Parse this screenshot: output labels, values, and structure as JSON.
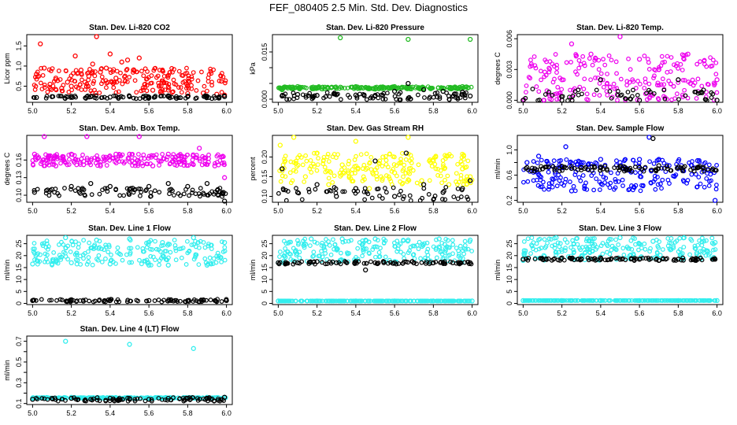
{
  "figure": {
    "title": "FEF_080405  2.5 Min. Std. Dev. Diagnostics"
  },
  "colors": {
    "black": "#000000",
    "red": "#ff0000",
    "green": "#22bb22",
    "magenta": "#ee00ee",
    "yellow": "#ffff00",
    "blue": "#0000ff",
    "cyan": "#33eeee"
  },
  "chart_data": [
    {
      "type": "scatter",
      "title": "Stan. Dev. Li-820 CO2",
      "xlabel": "",
      "ylabel": "Licor ppm",
      "xlim": [
        4.97,
        6.03
      ],
      "ylim": [
        0.1,
        1.78
      ],
      "xticks": [
        5.0,
        5.2,
        5.4,
        5.6,
        5.8,
        6.0
      ],
      "yticks": [
        0.5,
        1.0,
        1.5
      ],
      "ytick_labels": [
        "0.5",
        "1.0",
        "1.5"
      ],
      "grid": false,
      "series": [
        {
          "color_key": "red",
          "x": [
            5.02,
            5.04,
            5.06,
            5.09,
            5.12,
            5.15,
            5.18,
            5.2,
            5.22,
            5.25,
            5.27,
            5.29,
            5.31,
            5.33,
            5.35,
            5.38,
            5.4,
            5.43,
            5.46,
            5.49,
            5.52,
            5.55,
            5.58,
            5.62,
            5.66,
            5.72,
            5.8,
            5.88,
            5.95,
            5.99
          ],
          "y": [
            0.8,
            1.55,
            0.95,
            0.55,
            0.7,
            0.45,
            0.6,
            0.5,
            1.25,
            0.9,
            0.6,
            0.75,
            1.05,
            1.73,
            0.85,
            0.95,
            1.3,
            0.7,
            1.1,
            1.15,
            0.9,
            1.2,
            0.55,
            0.4,
            0.35,
            0.35,
            0.32,
            0.33,
            0.3,
            0.28
          ]
        },
        {
          "color_key": "black",
          "x": [
            5.02,
            5.1,
            5.2,
            5.3,
            5.4,
            5.5,
            5.6,
            5.7,
            5.8,
            5.9,
            5.99
          ],
          "y": [
            0.22,
            0.24,
            0.25,
            0.24,
            0.23,
            0.24,
            0.23,
            0.24,
            0.24,
            0.25,
            0.24
          ]
        }
      ]
    },
    {
      "type": "scatter",
      "title": "Stan. Dev. Li-820 Pressure",
      "xlabel": "",
      "ylabel": "kPa",
      "xlim": [
        4.97,
        6.03
      ],
      "ylim": [
        -0.001,
        0.0205
      ],
      "xticks": [
        5.0,
        5.2,
        5.4,
        5.6,
        5.8,
        6.0
      ],
      "yticks": [
        0.0,
        0.005,
        0.01,
        0.015
      ],
      "ytick_labels": [
        "0.000",
        "",
        "",
        "0.015"
      ],
      "grid": false,
      "series": [
        {
          "color_key": "green",
          "x": [
            5.02,
            5.1,
            5.2,
            5.32,
            5.4,
            5.5,
            5.6,
            5.67,
            5.75,
            5.85,
            5.95,
            5.99
          ],
          "y": [
            0.003,
            0.004,
            0.0035,
            0.0195,
            0.004,
            0.0032,
            0.004,
            0.019,
            0.0036,
            0.0035,
            0.004,
            0.019
          ]
        },
        {
          "color_key": "black",
          "x": [
            5.02,
            5.1,
            5.2,
            5.3,
            5.4,
            5.5,
            5.6,
            5.67,
            5.75,
            5.85,
            5.95,
            5.99
          ],
          "y": [
            0.001,
            0.0015,
            0.0012,
            0.0014,
            0.0013,
            0.0012,
            0.0025,
            0.005,
            0.003,
            0.0025,
            0.0022,
            0.001
          ]
        }
      ]
    },
    {
      "type": "scatter",
      "title": "Stan. Dev. Li-820 Temp.",
      "xlabel": "",
      "ylabel": "degrees C",
      "xlim": [
        4.97,
        6.03
      ],
      "ylim": [
        -0.0002,
        0.0064
      ],
      "xticks": [
        5.0,
        5.2,
        5.4,
        5.6,
        5.8,
        6.0
      ],
      "yticks": [
        0.0,
        0.003,
        0.006
      ],
      "ytick_labels": [
        "0.000",
        "0.003",
        "0.006"
      ],
      "grid": false,
      "series": [
        {
          "color_key": "magenta",
          "x": [
            5.0,
            5.2,
            5.25,
            5.35,
            5.5,
            5.6,
            5.7,
            5.85,
            6.0
          ],
          "y": [
            0.0,
            0.002,
            0.0055,
            0.0045,
            0.0062,
            0.004,
            0.003,
            0.0045,
            0.002
          ]
        },
        {
          "color_key": "black",
          "x": [
            5.0,
            5.2,
            5.4,
            5.6,
            5.8,
            6.0
          ],
          "y": [
            0.0,
            0.0,
            0.002,
            0.0,
            0.002,
            0.0
          ]
        }
      ]
    },
    {
      "type": "scatter",
      "title": "Stan. Dev. Amb. Box Temp.",
      "xlabel": "",
      "ylabel": "degrees C",
      "xlim": [
        4.97,
        6.03
      ],
      "ylim": [
        0.088,
        0.202
      ],
      "xticks": [
        5.0,
        5.2,
        5.4,
        5.6,
        5.8,
        6.0
      ],
      "yticks": [
        0.1,
        0.13,
        0.16
      ],
      "ytick_labels": [
        "0.10",
        "0.13",
        "0.16"
      ],
      "grid": false,
      "series": [
        {
          "color_key": "magenta",
          "x": [
            5.01,
            5.06,
            5.12,
            5.2,
            5.28,
            5.35,
            5.43,
            5.5,
            5.55,
            5.62,
            5.7,
            5.78,
            5.86,
            5.94,
            5.99
          ],
          "y": [
            0.17,
            0.2,
            0.15,
            0.17,
            0.2,
            0.15,
            0.17,
            0.17,
            0.2,
            0.15,
            0.17,
            0.16,
            0.18,
            0.15,
            0.13
          ]
        },
        {
          "color_key": "black",
          "x": [
            5.01,
            5.1,
            5.2,
            5.3,
            5.4,
            5.5,
            5.6,
            5.7,
            5.8,
            5.9,
            5.99
          ],
          "y": [
            0.105,
            0.11,
            0.115,
            0.12,
            0.115,
            0.11,
            0.115,
            0.12,
            0.115,
            0.12,
            0.09
          ]
        }
      ]
    },
    {
      "type": "scatter",
      "title": "Stan. Dev. Gas Stream RH",
      "xlabel": "",
      "ylabel": "percent",
      "xlim": [
        4.97,
        6.03
      ],
      "ylim": [
        0.085,
        0.255
      ],
      "xticks": [
        5.0,
        5.2,
        5.4,
        5.6,
        5.8,
        6.0
      ],
      "yticks": [
        0.1,
        0.15,
        0.2
      ],
      "ytick_labels": [
        "0.10",
        "0.15",
        "0.20"
      ],
      "grid": false,
      "series": [
        {
          "color_key": "yellow",
          "x": [
            5.01,
            5.08,
            5.14,
            5.2,
            5.26,
            5.33,
            5.4,
            5.47,
            5.54,
            5.6,
            5.67,
            5.74,
            5.8,
            5.88,
            5.95,
            5.99
          ],
          "y": [
            0.23,
            0.25,
            0.15,
            0.21,
            0.13,
            0.18,
            0.24,
            0.12,
            0.2,
            0.16,
            0.25,
            0.14,
            0.19,
            0.13,
            0.17,
            0.15
          ]
        },
        {
          "color_key": "black",
          "x": [
            5.02,
            5.1,
            5.2,
            5.3,
            5.4,
            5.5,
            5.6,
            5.66,
            5.75,
            5.85,
            5.95,
            5.99
          ],
          "y": [
            0.17,
            0.11,
            0.13,
            0.1,
            0.12,
            0.19,
            0.1,
            0.21,
            0.13,
            0.11,
            0.12,
            0.14
          ]
        }
      ]
    },
    {
      "type": "scatter",
      "title": "Stan. Dev. Sample Flow",
      "xlabel": "",
      "ylabel": "ml/min",
      "xlim": [
        4.97,
        6.03
      ],
      "ylim": [
        0.17,
        1.23
      ],
      "xticks": [
        5.0,
        5.2,
        5.4,
        5.6,
        5.8,
        6.0
      ],
      "yticks": [
        0.2,
        0.4,
        0.6,
        0.8,
        1.0
      ],
      "ytick_labels": [
        "0.2",
        "",
        "0.6",
        "",
        "1.0"
      ],
      "grid": false,
      "series": [
        {
          "color_key": "blue",
          "x": [
            5.02,
            5.08,
            5.15,
            5.22,
            5.25,
            5.3,
            5.4,
            5.5,
            5.6,
            5.65,
            5.7,
            5.8,
            5.9,
            5.99
          ],
          "y": [
            0.8,
            0.9,
            0.75,
            1.05,
            0.35,
            0.8,
            0.85,
            0.8,
            0.85,
            1.2,
            0.85,
            0.82,
            0.83,
            0.2
          ]
        },
        {
          "color_key": "black",
          "x": [
            5.02,
            5.1,
            5.2,
            5.3,
            5.4,
            5.5,
            5.6,
            5.67,
            5.7,
            5.8,
            5.9,
            5.99
          ],
          "y": [
            0.72,
            0.7,
            0.74,
            0.72,
            0.73,
            0.74,
            0.72,
            1.18,
            0.75,
            0.73,
            0.72,
            0.68
          ]
        }
      ]
    },
    {
      "type": "scatter",
      "title": "Stan. Dev. Line 1 Flow",
      "xlabel": "",
      "ylabel": "ml/min",
      "xlim": [
        4.97,
        6.03
      ],
      "ylim": [
        -0.5,
        28.5
      ],
      "xticks": [
        5.0,
        5.2,
        5.4,
        5.6,
        5.8,
        6.0
      ],
      "yticks": [
        0,
        5,
        10,
        15,
        20,
        25
      ],
      "ytick_labels": [
        "0",
        "5",
        "10",
        "15",
        "20",
        "25"
      ],
      "grid": false,
      "series": [
        {
          "color_key": "cyan",
          "x": [
            5.0,
            5.1,
            5.17,
            5.2,
            5.33,
            5.4,
            5.5,
            5.6,
            5.67,
            5.7,
            5.83,
            5.9,
            5.99
          ],
          "y": [
            16.5,
            16.5,
            27.5,
            17,
            26.5,
            16.5,
            27,
            16,
            25.5,
            16,
            27.5,
            16,
            25.5
          ]
        },
        {
          "color_key": "black",
          "x": [
            5.0,
            5.2,
            5.4,
            5.6,
            5.8,
            6.0
          ],
          "y": [
            1.2,
            1.2,
            1.2,
            1.2,
            1.2,
            1.2
          ]
        }
      ]
    },
    {
      "type": "scatter",
      "title": "Stan. Dev. Line 2 Flow",
      "xlabel": "",
      "ylabel": "ml/min",
      "xlim": [
        4.97,
        6.03
      ],
      "ylim": [
        -0.5,
        28.5
      ],
      "xticks": [
        5.0,
        5.2,
        5.4,
        5.6,
        5.8,
        6.0
      ],
      "yticks": [
        0,
        5,
        10,
        15,
        20,
        25
      ],
      "ytick_labels": [
        "0",
        "5",
        "10",
        "15",
        "20",
        "25"
      ],
      "grid": false,
      "series": [
        {
          "color_key": "cyan",
          "x": [
            5.0,
            5.17,
            5.33,
            5.5,
            5.67,
            5.83,
            5.99
          ],
          "y": [
            17,
            27,
            27,
            27,
            26.5,
            27,
            26.5
          ]
        },
        {
          "color_key": "cyan",
          "x": [
            5.0,
            5.2,
            5.4,
            5.6,
            5.8,
            6.0
          ],
          "y": [
            1.0,
            1.0,
            1.0,
            1.0,
            1.0,
            1.0
          ]
        },
        {
          "color_key": "black",
          "x": [
            5.0,
            5.1,
            5.2,
            5.3,
            5.4,
            5.45,
            5.5,
            5.6,
            5.7,
            5.8,
            5.9,
            5.99
          ],
          "y": [
            17,
            17,
            17.5,
            17,
            17.5,
            14,
            17,
            17,
            17,
            17,
            17,
            17
          ]
        }
      ]
    },
    {
      "type": "scatter",
      "title": "Stan. Dev. Line 3 Flow",
      "xlabel": "",
      "ylabel": "ml/min",
      "xlim": [
        4.97,
        6.03
      ],
      "ylim": [
        -0.5,
        28.5
      ],
      "xticks": [
        5.0,
        5.2,
        5.4,
        5.6,
        5.8,
        6.0
      ],
      "yticks": [
        0,
        5,
        10,
        15,
        20,
        25
      ],
      "ytick_labels": [
        "0",
        "5",
        "10",
        "15",
        "20",
        "25"
      ],
      "grid": false,
      "series": [
        {
          "color_key": "cyan",
          "x": [
            5.0,
            5.17,
            5.33,
            5.5,
            5.67,
            5.83,
            5.99
          ],
          "y": [
            18,
            27.5,
            27,
            27.5,
            26,
            27.5,
            25.5
          ]
        },
        {
          "color_key": "cyan",
          "x": [
            5.0,
            5.2,
            5.4,
            5.6,
            5.8,
            6.0
          ],
          "y": [
            1.2,
            1.2,
            1.2,
            1.2,
            1.2,
            1.2
          ]
        },
        {
          "color_key": "black",
          "x": [
            5.0,
            5.1,
            5.2,
            5.3,
            5.4,
            5.5,
            5.6,
            5.7,
            5.8,
            5.9,
            5.99
          ],
          "y": [
            18.5,
            18.5,
            19,
            18.5,
            19,
            18.5,
            18.5,
            18,
            18.5,
            18.5,
            18.5
          ]
        }
      ]
    },
    {
      "type": "scatter",
      "title": "Stan. Dev. Line 4 (LT) Flow",
      "xlabel": "",
      "ylabel": "ml/min",
      "xlim": [
        4.97,
        6.03
      ],
      "ylim": [
        0.09,
        0.75
      ],
      "xticks": [
        5.0,
        5.2,
        5.4,
        5.6,
        5.8,
        6.0
      ],
      "yticks": [
        0.1,
        0.2,
        0.3,
        0.4,
        0.5,
        0.6,
        0.7
      ],
      "ytick_labels": [
        "0.1",
        "",
        "0.3",
        "",
        "0.5",
        "",
        "0.7"
      ],
      "grid": false,
      "series": [
        {
          "color_key": "cyan",
          "x": [
            5.0,
            5.1,
            5.17,
            5.2,
            5.3,
            5.4,
            5.5,
            5.6,
            5.7,
            5.83,
            5.9,
            5.99
          ],
          "y": [
            0.15,
            0.15,
            0.7,
            0.16,
            0.15,
            0.15,
            0.67,
            0.15,
            0.15,
            0.63,
            0.16,
            0.16
          ]
        },
        {
          "color_key": "black",
          "x": [
            5.0,
            5.1,
            5.2,
            5.3,
            5.4,
            5.5,
            5.6,
            5.7,
            5.8,
            5.9,
            5.99
          ],
          "y": [
            0.14,
            0.15,
            0.15,
            0.14,
            0.15,
            0.15,
            0.14,
            0.15,
            0.15,
            0.15,
            0.16
          ]
        }
      ]
    }
  ]
}
